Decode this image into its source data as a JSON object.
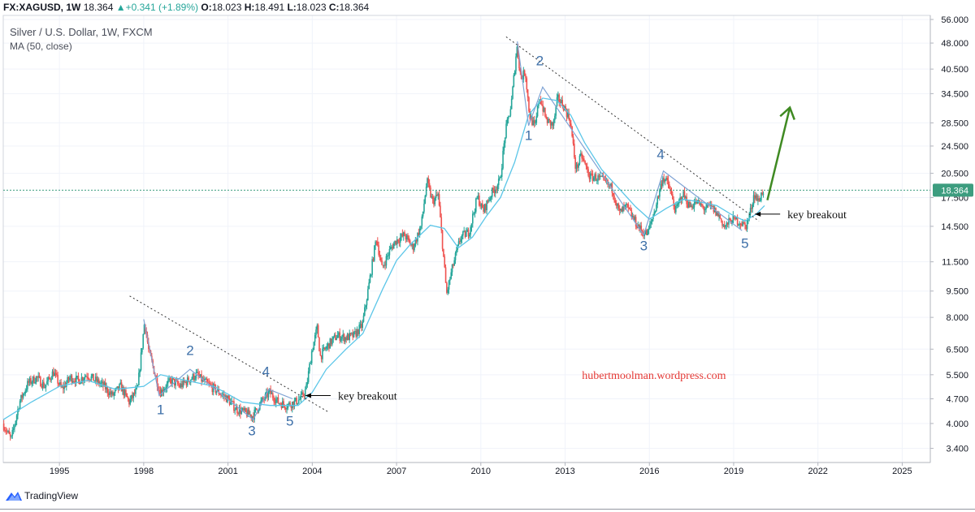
{
  "header": {
    "symbol": "FX:XAGUSD, 1W",
    "price": "18.364",
    "change": "▲+0.341 (+1.89%)",
    "o_label": "O:",
    "o_value": "18.023",
    "h_label": "H:",
    "h_value": "18.491",
    "l_label": "L:",
    "l_value": "18.023",
    "c_label": "C:",
    "c_value": "18.364"
  },
  "legend": {
    "title": "Silver / U.S. Dollar, 1W, FXCM",
    "indicator": "MA (50, close)"
  },
  "colors": {
    "up": "#26a69a",
    "down": "#ef5350",
    "ma": "#5cc6e8",
    "wave": "#7fa3d4",
    "wave_label": "#3d6fa8",
    "arrow": "#3f8a22",
    "watermark": "#e53935",
    "last_price": "#3d9d7f",
    "trend": "#333333"
  },
  "chart_data": {
    "type": "candlestick",
    "title": "Silver / U.S. Dollar, 1W, FXCM",
    "x_axis": {
      "range": [
        1993.0,
        2026.0
      ],
      "ticks": [
        "1995",
        "1998",
        "2001",
        "2004",
        "2007",
        "2010",
        "2013",
        "2016",
        "2019",
        "2022",
        "2025"
      ],
      "tick_values": [
        1995,
        1998,
        2001,
        2004,
        2007,
        2010,
        2013,
        2016,
        2019,
        2022,
        2025
      ]
    },
    "y_axis": {
      "scale": "log",
      "range": [
        3.1,
        57.5
      ],
      "tick_labels": [
        "56.000",
        "48.000",
        "40.500",
        "34.500",
        "28.500",
        "24.500",
        "20.500",
        "17.500",
        "14.500",
        "11.500",
        "9.500",
        "8.000",
        "6.500",
        "5.500",
        "4.700",
        "4.000",
        "3.400"
      ],
      "tick_values": [
        56,
        48,
        40.5,
        34.5,
        28.5,
        24.5,
        20.5,
        17.5,
        14.5,
        11.5,
        9.5,
        8,
        6.5,
        5.5,
        4.7,
        4,
        3.4
      ]
    },
    "grid": true,
    "last_price": "18.364",
    "last_price_value": 18.364,
    "price_path": [
      [
        1993.0,
        4.0
      ],
      [
        1993.3,
        3.6
      ],
      [
        1993.6,
        4.6
      ],
      [
        1993.9,
        5.2
      ],
      [
        1994.2,
        5.4
      ],
      [
        1994.5,
        5.1
      ],
      [
        1994.8,
        5.6
      ],
      [
        1995.1,
        5.0
      ],
      [
        1995.4,
        5.4
      ],
      [
        1995.7,
        5.3
      ],
      [
        1996.0,
        5.5
      ],
      [
        1996.3,
        5.3
      ],
      [
        1996.6,
        5.1
      ],
      [
        1996.9,
        4.8
      ],
      [
        1997.2,
        5.1
      ],
      [
        1997.5,
        4.6
      ],
      [
        1997.8,
        5.0
      ],
      [
        1998.05,
        7.8
      ],
      [
        1998.2,
        6.4
      ],
      [
        1998.4,
        5.6
      ],
      [
        1998.6,
        4.9
      ],
      [
        1998.8,
        5.1
      ],
      [
        1999.0,
        5.3
      ],
      [
        1999.3,
        5.1
      ],
      [
        1999.6,
        5.3
      ],
      [
        1999.9,
        5.5
      ],
      [
        2000.1,
        5.3
      ],
      [
        2000.4,
        5.1
      ],
      [
        2000.7,
        4.9
      ],
      [
        2001.0,
        4.7
      ],
      [
        2001.3,
        4.4
      ],
      [
        2001.6,
        4.3
      ],
      [
        2001.9,
        4.2
      ],
      [
        2002.2,
        4.6
      ],
      [
        2002.5,
        4.9
      ],
      [
        2002.8,
        4.6
      ],
      [
        2003.1,
        4.5
      ],
      [
        2003.4,
        4.6
      ],
      [
        2003.6,
        4.7
      ],
      [
        2003.8,
        5.0
      ],
      [
        2004.0,
        6.4
      ],
      [
        2004.2,
        7.5
      ],
      [
        2004.3,
        6.2
      ],
      [
        2004.6,
        6.7
      ],
      [
        2004.9,
        7.1
      ],
      [
        2005.2,
        7.0
      ],
      [
        2005.5,
        7.1
      ],
      [
        2005.8,
        7.6
      ],
      [
        2006.0,
        9.5
      ],
      [
        2006.3,
        13.5
      ],
      [
        2006.5,
        11.0
      ],
      [
        2006.8,
        12.5
      ],
      [
        2007.0,
        13.2
      ],
      [
        2007.3,
        13.7
      ],
      [
        2007.6,
        12.6
      ],
      [
        2007.9,
        14.6
      ],
      [
        2008.1,
        19.5
      ],
      [
        2008.3,
        17.0
      ],
      [
        2008.5,
        17.8
      ],
      [
        2008.65,
        13.0
      ],
      [
        2008.8,
        9.3
      ],
      [
        2009.0,
        11.0
      ],
      [
        2009.3,
        13.5
      ],
      [
        2009.6,
        14.0
      ],
      [
        2009.9,
        17.6
      ],
      [
        2010.1,
        16.0
      ],
      [
        2010.4,
        18.0
      ],
      [
        2010.7,
        19.5
      ],
      [
        2010.9,
        27.0
      ],
      [
        2011.1,
        32.0
      ],
      [
        2011.3,
        47.0
      ],
      [
        2011.45,
        38.0
      ],
      [
        2011.6,
        40.0
      ],
      [
        2011.75,
        30.0
      ],
      [
        2011.95,
        27.5
      ],
      [
        2012.1,
        34.0
      ],
      [
        2012.35,
        29.0
      ],
      [
        2012.6,
        28.0
      ],
      [
        2012.75,
        33.5
      ],
      [
        2012.95,
        32.0
      ],
      [
        2013.2,
        29.0
      ],
      [
        2013.4,
        21.0
      ],
      [
        2013.6,
        23.0
      ],
      [
        2013.9,
        20.0
      ],
      [
        2014.1,
        20.0
      ],
      [
        2014.4,
        19.5
      ],
      [
        2014.7,
        18.5
      ],
      [
        2014.95,
        15.8
      ],
      [
        2015.2,
        16.5
      ],
      [
        2015.5,
        15.0
      ],
      [
        2015.75,
        14.0
      ],
      [
        2015.95,
        13.8
      ],
      [
        2016.2,
        16.0
      ],
      [
        2016.5,
        20.0
      ],
      [
        2016.7,
        19.0
      ],
      [
        2016.95,
        16.0
      ],
      [
        2017.2,
        18.0
      ],
      [
        2017.45,
        16.5
      ],
      [
        2017.7,
        17.0
      ],
      [
        2017.95,
        16.3
      ],
      [
        2018.2,
        16.5
      ],
      [
        2018.5,
        15.5
      ],
      [
        2018.7,
        14.4
      ],
      [
        2018.95,
        15.2
      ],
      [
        2019.2,
        15.0
      ],
      [
        2019.45,
        14.5
      ],
      [
        2019.6,
        15.8
      ],
      [
        2019.75,
        18.0
      ],
      [
        2019.9,
        17.0
      ],
      [
        2020.05,
        18.3
      ]
    ],
    "moving_average": [
      [
        1993.0,
        4.1
      ],
      [
        1994.0,
        4.6
      ],
      [
        1995.0,
        5.1
      ],
      [
        1996.0,
        5.3
      ],
      [
        1997.0,
        5.0
      ],
      [
        1998.0,
        5.1
      ],
      [
        1998.6,
        5.5
      ],
      [
        1999.5,
        5.3
      ],
      [
        2000.5,
        5.1
      ],
      [
        2001.5,
        4.6
      ],
      [
        2002.5,
        4.5
      ],
      [
        2003.5,
        4.5
      ],
      [
        2004.0,
        4.9
      ],
      [
        2004.5,
        5.7
      ],
      [
        2005.2,
        6.5
      ],
      [
        2005.8,
        7.2
      ],
      [
        2006.5,
        9.6
      ],
      [
        2007.0,
        11.6
      ],
      [
        2007.5,
        12.9
      ],
      [
        2008.2,
        14.6
      ],
      [
        2008.7,
        14.3
      ],
      [
        2009.2,
        12.6
      ],
      [
        2009.7,
        13.5
      ],
      [
        2010.2,
        15.5
      ],
      [
        2010.7,
        17.5
      ],
      [
        2011.2,
        22.0
      ],
      [
        2011.7,
        30.0
      ],
      [
        2012.2,
        33.5
      ],
      [
        2012.7,
        33.0
      ],
      [
        2013.2,
        30.0
      ],
      [
        2013.7,
        25.0
      ],
      [
        2014.3,
        21.0
      ],
      [
        2014.8,
        19.0
      ],
      [
        2015.5,
        16.5
      ],
      [
        2016.0,
        15.2
      ],
      [
        2016.6,
        16.3
      ],
      [
        2017.2,
        17.3
      ],
      [
        2017.8,
        17.0
      ],
      [
        2018.4,
        16.6
      ],
      [
        2018.9,
        15.7
      ],
      [
        2019.4,
        15.0
      ],
      [
        2019.8,
        15.7
      ],
      [
        2020.1,
        16.6
      ]
    ],
    "series": [
      {
        "values": []
      }
    ],
    "annotations": {
      "trendlines": [
        {
          "from": [
            1997.5,
            9.2
          ],
          "to": [
            2004.6,
            4.3
          ]
        },
        {
          "from": [
            2010.9,
            50.0
          ],
          "to": [
            2019.9,
            15.0
          ]
        }
      ],
      "wave_paths": [
        [
          [
            1998.0,
            7.9
          ],
          [
            1998.55,
            4.8
          ],
          [
            1999.65,
            5.7
          ],
          [
            2001.9,
            4.1
          ],
          [
            2002.45,
            5.0
          ],
          [
            2003.3,
            4.7
          ]
        ],
        [
          [
            2011.3,
            48.5
          ],
          [
            2011.7,
            28.0
          ],
          [
            2012.2,
            36.0
          ],
          [
            2015.8,
            13.7
          ],
          [
            2016.5,
            20.8
          ],
          [
            2019.3,
            14.1
          ]
        ]
      ],
      "wave_labels": [
        {
          "text": "1",
          "x": 1998.6,
          "y": 4.25
        },
        {
          "text": "2",
          "x": 1999.65,
          "y": 6.25
        },
        {
          "text": "3",
          "x": 2001.85,
          "y": 3.7
        },
        {
          "text": "4",
          "x": 2002.35,
          "y": 5.45
        },
        {
          "text": "5",
          "x": 2003.2,
          "y": 3.95
        },
        {
          "text": "1",
          "x": 2011.7,
          "y": 25.5
        },
        {
          "text": "2",
          "x": 2012.1,
          "y": 41.5
        },
        {
          "text": "3",
          "x": 2015.8,
          "y": 12.4
        },
        {
          "text": "4",
          "x": 2016.4,
          "y": 22.5
        },
        {
          "text": "5",
          "x": 2019.4,
          "y": 12.6
        }
      ],
      "breakout_labels": [
        {
          "text": "key breakout",
          "x": 2003.7,
          "y": 4.8
        },
        {
          "text": "key breakout",
          "x": 2019.7,
          "y": 15.7
        }
      ],
      "up_arrow": {
        "from": [
          2020.2,
          17.2
        ],
        "to": [
          2021.0,
          31.5
        ]
      },
      "watermark": {
        "text": "hubertmoolman.wordpress.com",
        "x": 2013.6,
        "y": 5.35
      }
    }
  },
  "footer": {
    "brand": "TradingView"
  }
}
